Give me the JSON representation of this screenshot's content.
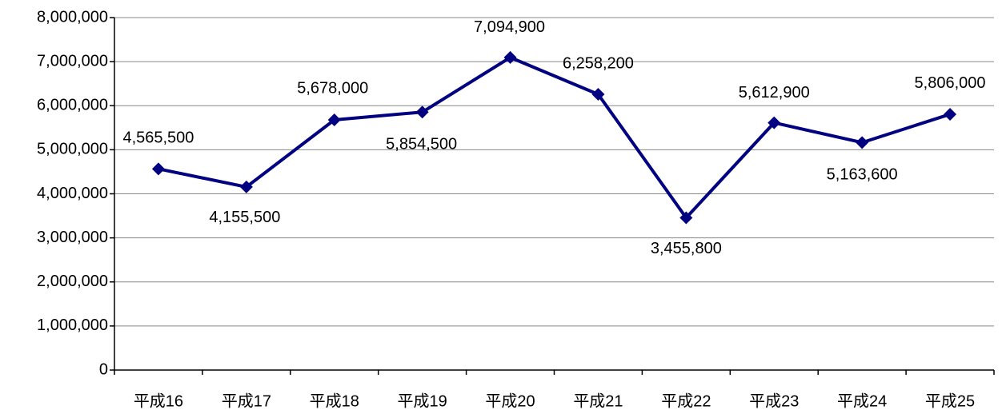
{
  "chart_data": {
    "type": "line",
    "categories": [
      "平成16",
      "平成17",
      "平成18",
      "平成19",
      "平成20",
      "平成21",
      "平成22",
      "平成23",
      "平成24",
      "平成25"
    ],
    "series": [
      {
        "color": "#000080",
        "values": [
          4565500,
          4155500,
          5678000,
          5854500,
          7094900,
          6258200,
          3455800,
          5612900,
          5163600,
          5806000
        ],
        "value_labels": [
          "4,565,500",
          "4,155,500",
          "5,678,000",
          "5,854,500",
          "7,094,900",
          "6,258,200",
          "3,455,800",
          "5,612,900",
          "5,163,600",
          "5,806,000"
        ]
      }
    ],
    "ylim": [
      0,
      8000000
    ],
    "yticks": [
      0,
      {
        "value": 1000000,
        "label": "1,000,000"
      },
      {
        "value": 2000000,
        "label": "2,000,000"
      },
      {
        "value": 3000000,
        "label": "3,000,000"
      },
      {
        "value": 4000000,
        "label": "4,000,000"
      },
      {
        "value": 5000000,
        "label": "5,000,000"
      },
      {
        "value": 6000000,
        "label": "6,000,000"
      },
      {
        "value": 7000000,
        "label": "7,000,000"
      },
      {
        "value": 8000000,
        "label": "8,000,000"
      }
    ],
    "grid": true
  }
}
